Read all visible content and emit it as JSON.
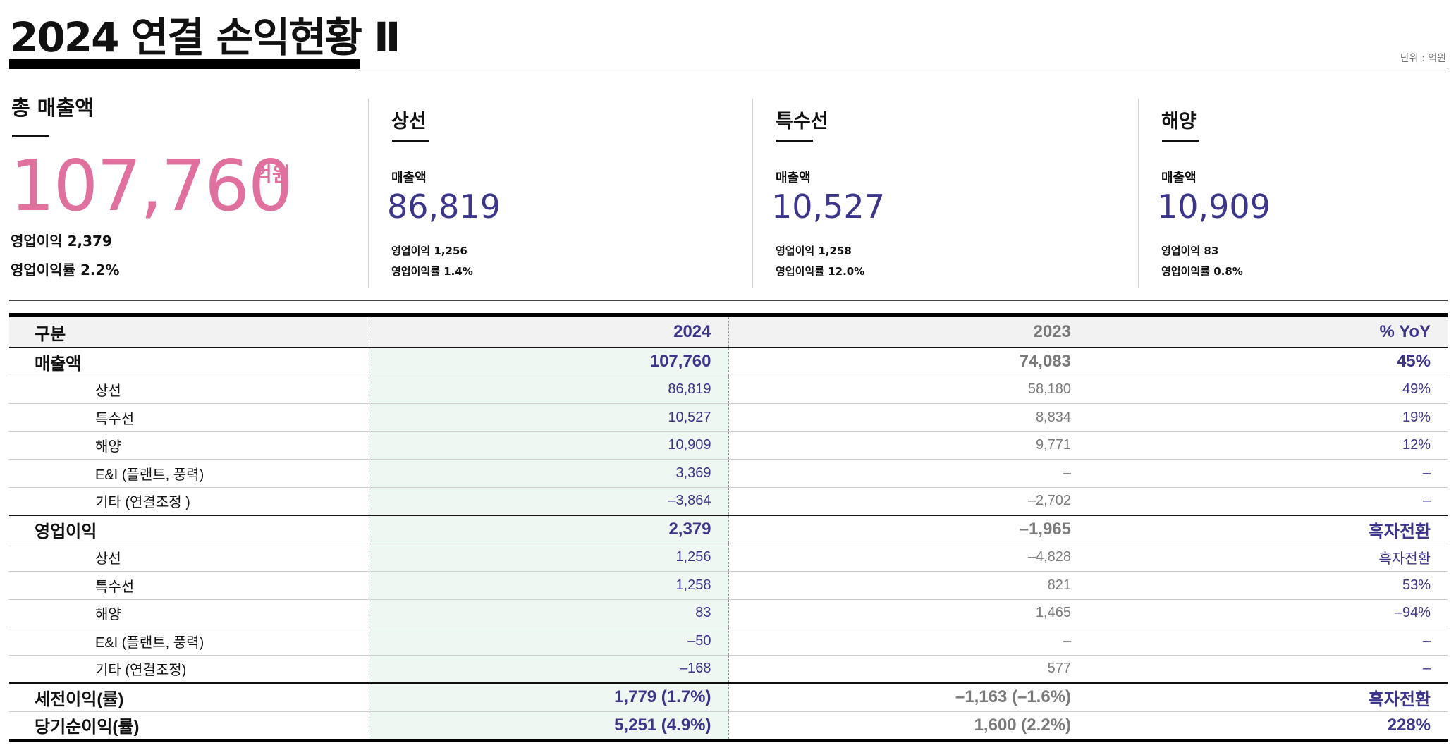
{
  "page": {
    "title": "2024 연결 손익현황 Ⅱ",
    "unit": "단위 : 억원"
  },
  "summary": {
    "total": {
      "label": "총 매출액",
      "value": "107,760",
      "value_unit": "억원",
      "op_profit": "영업이익  2,379",
      "op_margin": "영업이익률  2.2%"
    },
    "segments": [
      {
        "name": "상선",
        "revenue_label": "매출액",
        "revenue": "86,819",
        "op_profit": "영업이익  1,256",
        "op_margin": "영업이익률  1.4%"
      },
      {
        "name": "특수선",
        "revenue_label": "매출액",
        "revenue": "10,527",
        "op_profit": "영업이익     1,258",
        "op_margin": "영업이익률  12.0%"
      },
      {
        "name": "해양",
        "revenue_label": "매출액",
        "revenue": "10,909",
        "op_profit": "영업이익  83",
        "op_margin": "영업이익률  0.8%"
      }
    ]
  },
  "table": {
    "headers": [
      "구분",
      "2024",
      "2023",
      "% YoY"
    ],
    "rows": [
      {
        "label": "매출액",
        "v2024": "107,760",
        "v2023": "74,083",
        "yoy": "45%"
      },
      {
        "label": "상선",
        "v2024": "86,819",
        "v2023": "58,180",
        "yoy": "49%"
      },
      {
        "label": "특수선",
        "v2024": "10,527",
        "v2023": "8,834",
        "yoy": "19%"
      },
      {
        "label": "해양",
        "v2024": "10,909",
        "v2023": "9,771",
        "yoy": "12%"
      },
      {
        "label": "E&I (플랜트, 풍력)",
        "v2024": "3,369",
        "v2023": "–",
        "yoy": "–"
      },
      {
        "label": "기타 (연결조정 )",
        "v2024": "–3,864",
        "v2023": "–2,702",
        "yoy": "–"
      },
      {
        "label": "영업이익",
        "v2024": "2,379",
        "v2023": "–1,965",
        "yoy": "흑자전환"
      },
      {
        "label": "상선",
        "v2024": "1,256",
        "v2023": "–4,828",
        "yoy": "흑자전환"
      },
      {
        "label": "특수선",
        "v2024": "1,258",
        "v2023": "821",
        "yoy": "53%"
      },
      {
        "label": "해양",
        "v2024": "83",
        "v2023": "1,465",
        "yoy": "–94%"
      },
      {
        "label": "E&I (플랜트, 풍력)",
        "v2024": "–50",
        "v2023": "–",
        "yoy": "–"
      },
      {
        "label": "기타 (연결조정)",
        "v2024": "–168",
        "v2023": "577",
        "yoy": "–"
      },
      {
        "label": "세전이익(률)",
        "v2024": "1,779 (1.7%)",
        "v2023": "–1,163 (–1.6%)",
        "yoy": "흑자전환"
      },
      {
        "label": "당기순이익(률)",
        "v2024": "5,251 (4.9%)",
        "v2023": "1,600 (2.2%)",
        "yoy": "228%"
      }
    ]
  },
  "colors": {
    "total_accent": "#e0709d",
    "value_accent": "#3b3689",
    "prior_year_gray": "#7a7a7a",
    "highlight_column": "#edf8f2"
  }
}
